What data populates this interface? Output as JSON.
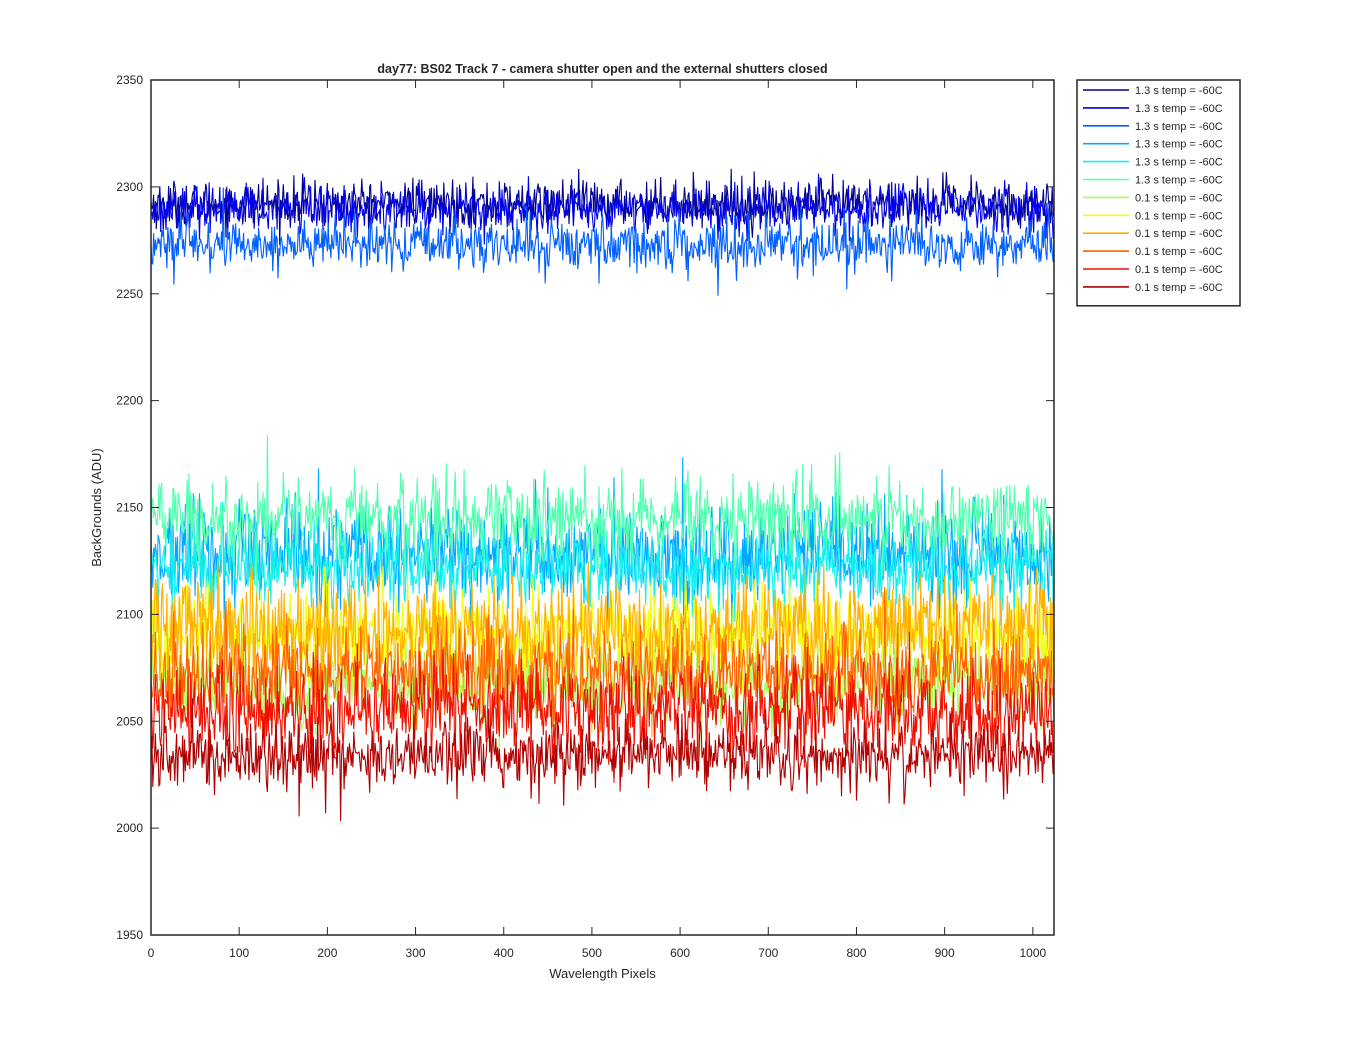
{
  "chart_data": {
    "type": "line",
    "title": "day77: BS02  Track 7 - camera shutter open and the external shutters closed",
    "xlabel": "Wavelength Pixels",
    "ylabel": "BackGrounds (ADU)",
    "xlim": [
      0,
      1024
    ],
    "ylim": [
      1950,
      2350
    ],
    "xticks": [
      0,
      100,
      200,
      300,
      400,
      500,
      600,
      700,
      800,
      900,
      1000
    ],
    "yticks": [
      1950,
      2000,
      2050,
      2100,
      2150,
      2200,
      2250,
      2300,
      2350
    ],
    "grid": false,
    "legend_position": "outside-top-right",
    "series": [
      {
        "name": "1.3 s temp = -60C",
        "color": "#00008f",
        "mean": 2292,
        "noise": 5.5
      },
      {
        "name": "1.3 s temp = -60C",
        "color": "#0000ea",
        "mean": 2290,
        "noise": 5.5
      },
      {
        "name": "1.3 s temp = -60C",
        "color": "#0060ff",
        "mean": 2273,
        "noise": 6.0
      },
      {
        "name": "1.3 s temp = -60C",
        "color": "#00a8ff",
        "mean": 2128,
        "noise": 12
      },
      {
        "name": "1.3 s temp = -60C",
        "color": "#10f0ef",
        "mean": 2122,
        "noise": 9
      },
      {
        "name": "1.3 s temp = -60C",
        "color": "#50ffaf",
        "mean": 2145,
        "noise": 10
      },
      {
        "name": "0.1 s temp = -60C",
        "color": "#a8ff58",
        "mean": 2068,
        "noise": 10
      },
      {
        "name": "0.1 s temp = -60C",
        "color": "#f0ff10",
        "mean": 2090,
        "noise": 11
      },
      {
        "name": "0.1 s temp = -60C",
        "color": "#ffb000",
        "mean": 2092,
        "noise": 12
      },
      {
        "name": "0.1 s temp = -60C",
        "color": "#ff6000",
        "mean": 2072,
        "noise": 11
      },
      {
        "name": "0.1 s temp = -60C",
        "color": "#f01000",
        "mean": 2055,
        "noise": 11
      },
      {
        "name": "0.1 s temp = -60C",
        "color": "#b00000",
        "mean": 2034,
        "noise": 8
      }
    ]
  }
}
